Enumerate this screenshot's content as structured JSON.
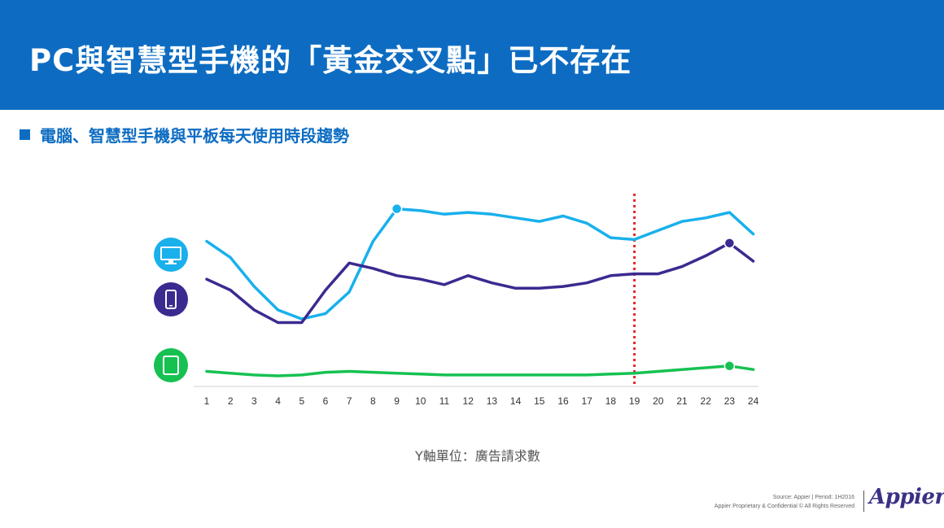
{
  "header": {
    "title": "PC與智慧型手機的「黃金交叉點」已不存在",
    "color": "#0d6cc2"
  },
  "chart_data": {
    "type": "line",
    "title": "電腦、智慧型手機與平板每天使用時段趨勢",
    "x": [
      1,
      2,
      3,
      4,
      5,
      6,
      7,
      8,
      9,
      10,
      11,
      12,
      13,
      14,
      15,
      16,
      17,
      18,
      19,
      20,
      21,
      22,
      23,
      24
    ],
    "ylabel": "Y軸單位：廣告請求數",
    "xlabel": "",
    "ylim": [
      0,
      100
    ],
    "grid": false,
    "series": [
      {
        "icon": "desktop-monitor-icon",
        "color": "#19b0ec",
        "values": [
          79,
          70,
          54,
          41,
          36,
          39,
          51,
          79,
          97,
          96,
          94,
          95,
          94,
          92,
          90,
          93,
          89,
          81,
          80,
          85,
          90,
          92,
          95,
          83
        ],
        "highlight_x": 9
      },
      {
        "icon": "smartphone-icon",
        "color": "#3b2a90",
        "values": [
          58,
          52,
          41,
          34,
          34,
          52,
          67,
          64,
          60,
          58,
          55,
          60,
          56,
          53,
          53,
          54,
          56,
          60,
          61,
          61,
          65,
          71,
          78,
          68
        ],
        "highlight_x": 23
      },
      {
        "icon": "tablet-icon",
        "color": "#16c152",
        "values": [
          7,
          6,
          5,
          4.5,
          5,
          6.5,
          7,
          6.5,
          6,
          5.5,
          5,
          5,
          5,
          5,
          5,
          5,
          5,
          5.5,
          6,
          7,
          8,
          9,
          10,
          8
        ],
        "highlight_x": 23
      }
    ],
    "marker_x": 19,
    "marker_color": "#e8262a"
  },
  "footer": {
    "source": "Source: Appier | Period: 1H2016",
    "legal": "Appier Proprietary & Confidential © All Rights Reserved",
    "brand": "Appier"
  }
}
